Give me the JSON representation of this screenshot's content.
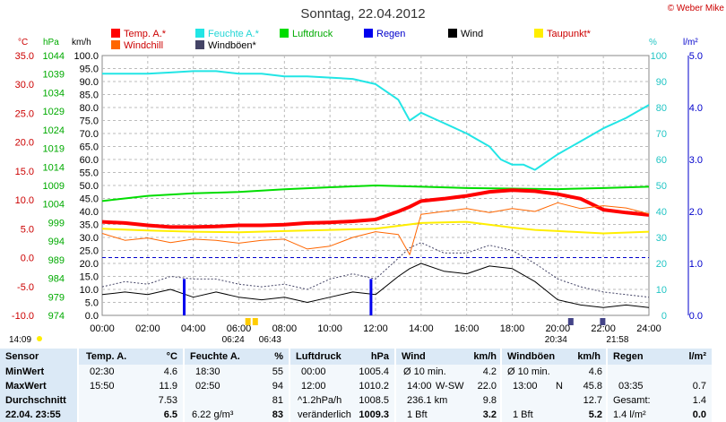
{
  "title": "Sonntag, 22.04.2012",
  "copyright": "© Weber Mike",
  "axis_units": {
    "temp": "°C",
    "pressure": "hPa",
    "wind": "km/h",
    "humidity": "%",
    "rain": "l/m²"
  },
  "legend": [
    {
      "label": "Temp. A.*",
      "color": "#ff0000",
      "text_color": "#cc0000"
    },
    {
      "label": "Feuchte A.*",
      "color": "#22e5e5",
      "text_color": "#22d5d5"
    },
    {
      "label": "Luftdruck",
      "color": "#00dd00",
      "text_color": "#00aa00"
    },
    {
      "label": "Regen",
      "color": "#0000ee",
      "text_color": "#0000cc"
    },
    {
      "label": "Wind",
      "color": "#000000",
      "text_color": "#000000"
    },
    {
      "label": "Taupunkt*",
      "color": "#ffee00",
      "text_color": "#cc0000"
    },
    {
      "label": "Windchill",
      "color": "#ff6600",
      "text_color": "#cc0000"
    },
    {
      "label": "Windböen*",
      "color": "#444466",
      "text_color": "#000000"
    }
  ],
  "chart_data": {
    "type": "line",
    "title": "Sonntag, 22.04.2012",
    "x_ticks": [
      "00:00",
      "02:00",
      "04:00",
      "06:00",
      "08:00",
      "10:00",
      "12:00",
      "14:00",
      "16:00",
      "18:00",
      "20:00",
      "22:00",
      "24:00"
    ],
    "x_hours": [
      0,
      2,
      4,
      6,
      8,
      10,
      12,
      14,
      16,
      18,
      20,
      22,
      24
    ],
    "temp_ticks": [
      "35.0",
      "30.0",
      "25.0",
      "20.0",
      "15.0",
      "10.0",
      "5.0",
      "0.0",
      "-5.0",
      "-10.0"
    ],
    "pressure_ticks": [
      "1044",
      "1039",
      "1034",
      "1029",
      "1024",
      "1019",
      "1014",
      "1009",
      "1004",
      "999",
      "994",
      "989",
      "984",
      "979",
      "974"
    ],
    "wind_ticks": [
      "100.0",
      "95.0",
      "90.0",
      "85.0",
      "80.0",
      "75.0",
      "70.0",
      "65.0",
      "60.0",
      "55.0",
      "50.0",
      "45.0",
      "40.0",
      "35.0",
      "30.0",
      "25.0",
      "20.0",
      "15.0",
      "10.0",
      "5.0",
      "0.0"
    ],
    "humidity_ticks": [
      "100",
      "90",
      "80",
      "70",
      "60",
      "50",
      "40",
      "30",
      "20",
      "10",
      "0"
    ],
    "rain_ticks": [
      "5.0",
      "4.0",
      "3.0",
      "2.0",
      "1.0",
      "0.0"
    ],
    "ylim_temp": [
      -10,
      35
    ],
    "ylim_wind": [
      0,
      100
    ],
    "ylim_humidity": [
      0,
      100
    ],
    "ylim_rain": [
      0,
      5
    ],
    "zero_line_temp": 0.0,
    "series": [
      {
        "name": "Feuchte A.*",
        "axis": "humidity",
        "color": "#22e5e5",
        "width": 2,
        "x": [
          0,
          1,
          2,
          3,
          4,
          5,
          6,
          7,
          8,
          9,
          10,
          11,
          12,
          13,
          13.5,
          14,
          14.5,
          15,
          16,
          17,
          17.5,
          18,
          18.5,
          19,
          20,
          21,
          22,
          23,
          24
        ],
        "y": [
          93,
          93,
          93,
          93.5,
          94,
          94,
          93,
          93,
          92,
          92,
          91.5,
          91,
          89,
          83,
          75,
          78,
          76,
          74,
          70,
          65,
          60,
          58,
          58,
          56,
          62,
          67,
          72,
          76,
          81
        ]
      },
      {
        "name": "Luftdruck",
        "axis": "humidity",
        "color": "#00dd00",
        "width": 2,
        "x": [
          0,
          2,
          4,
          6,
          8,
          10,
          12,
          14,
          16,
          18,
          20,
          22,
          24
        ],
        "y": [
          44,
          46,
          47,
          47.5,
          48.5,
          49.3,
          50,
          49.5,
          49,
          48.8,
          48.6,
          49,
          49.5
        ]
      },
      {
        "name": "Temp. A.*",
        "axis": "temp",
        "color": "#ff0000",
        "width": 4,
        "x": [
          0,
          1,
          2,
          3,
          4,
          5,
          6,
          7,
          8,
          9,
          10,
          11,
          12,
          13,
          13.5,
          14,
          15,
          16,
          17,
          18,
          19,
          20,
          21,
          22,
          23,
          24
        ],
        "y": [
          6.2,
          6.0,
          5.6,
          5.3,
          5.3,
          5.4,
          5.6,
          5.6,
          5.7,
          6.0,
          6.1,
          6.3,
          6.6,
          8.0,
          8.8,
          9.8,
          10.2,
          10.7,
          11.4,
          11.7,
          11.5,
          11.0,
          10.2,
          8.3,
          7.8,
          7.4
        ]
      },
      {
        "name": "Taupunkt*",
        "axis": "temp",
        "color": "#ffee00",
        "width": 2,
        "x": [
          0,
          2,
          4,
          6,
          8,
          10,
          12,
          14,
          16,
          18,
          19,
          20,
          22,
          24
        ],
        "y": [
          5.0,
          4.7,
          4.5,
          4.4,
          4.6,
          4.8,
          5.0,
          6.0,
          6.2,
          5.2,
          4.8,
          4.6,
          4.2,
          4.5
        ]
      },
      {
        "name": "Windchill",
        "axis": "temp",
        "color": "#ff6600",
        "width": 1,
        "x": [
          0,
          1,
          2,
          3,
          4,
          5,
          6,
          7,
          8,
          9,
          10,
          11,
          12,
          13,
          13.5,
          14,
          15,
          16,
          17,
          18,
          19,
          20,
          21,
          22,
          23,
          24
        ],
        "y": [
          4.2,
          3.0,
          3.4,
          2.6,
          3.2,
          3.0,
          2.5,
          3.0,
          3.2,
          1.5,
          2.0,
          3.5,
          4.5,
          4.0,
          0.5,
          7.5,
          8.0,
          8.5,
          7.8,
          8.5,
          8.0,
          9.5,
          8.5,
          9.0,
          8.6,
          7.6
        ]
      },
      {
        "name": "Windböen*",
        "axis": "wind",
        "color": "#444466",
        "width": 1,
        "dash": "2,2",
        "x": [
          0,
          1,
          2,
          3,
          4,
          5,
          6,
          7,
          8,
          9,
          10,
          11,
          12,
          13,
          13.5,
          14,
          15,
          16,
          17,
          18,
          19,
          20,
          21,
          22,
          23,
          24
        ],
        "y": [
          11,
          13,
          12,
          15,
          14,
          14,
          12,
          11,
          12,
          10,
          14,
          16,
          14,
          22,
          26,
          28,
          24,
          24,
          27,
          25,
          20,
          14,
          11,
          9,
          8,
          7
        ]
      },
      {
        "name": "Wind",
        "axis": "wind",
        "color": "#000000",
        "width": 1,
        "x": [
          0,
          1,
          2,
          3,
          4,
          5,
          6,
          7,
          8,
          9,
          10,
          11,
          12,
          13,
          13.5,
          14,
          15,
          16,
          17,
          18,
          19,
          20,
          21,
          22,
          23,
          24
        ],
        "y": [
          8,
          9,
          8,
          10,
          7,
          9,
          7,
          6,
          7,
          5,
          7,
          9,
          8,
          15,
          18,
          20,
          17,
          16,
          19,
          18,
          13,
          6,
          4,
          3,
          4,
          3
        ]
      }
    ],
    "rain_bars": [
      {
        "x": 3.6,
        "y": 0.7
      },
      {
        "x": 11.8,
        "y": 0.7
      }
    ],
    "sun_markers": [
      {
        "time": "06:24",
        "x": 6.4,
        "type": "sunrise"
      },
      {
        "time": "06:43",
        "x": 6.72,
        "type": "sunrise"
      },
      {
        "time": "20:34",
        "x": 20.57,
        "type": "sunset"
      },
      {
        "time": "21:58",
        "x": 21.97,
        "type": "sunset"
      }
    ],
    "moment_marker": {
      "time": "14:09",
      "x": 0
    }
  },
  "table": {
    "sections": [
      {
        "header": "Sensor",
        "rows": [
          "MinWert",
          "MaxWert",
          "Durchschnitt",
          "22.04.  23:55"
        ]
      },
      {
        "header": "Temp. A.",
        "unit": "°C",
        "rows": [
          [
            "02:30",
            "4.6"
          ],
          [
            "15:50",
            "11.9"
          ],
          [
            "",
            "7.53"
          ],
          [
            "",
            "6.5"
          ]
        ]
      },
      {
        "header": "Feuchte A.",
        "unit": "%",
        "rows": [
          [
            "18:30",
            "55"
          ],
          [
            "02:50",
            "94"
          ],
          [
            "",
            "81"
          ],
          [
            "6.22 g/m³",
            "83"
          ]
        ]
      },
      {
        "header": "Luftdruck",
        "unit": "hPa",
        "rows": [
          [
            "00:00",
            "1005.4"
          ],
          [
            "12:00",
            "1010.2"
          ],
          [
            "^1.2hPa/h",
            "1008.5"
          ],
          [
            "veränderlich",
            "1009.3"
          ]
        ]
      },
      {
        "header": "Wind",
        "unit": "km/h",
        "rows": [
          [
            "Ø 10 min.",
            "",
            "4.2"
          ],
          [
            "14:00",
            "W-SW",
            "22.0"
          ],
          [
            "236.1 km",
            "",
            "9.8"
          ],
          [
            "1 Bft",
            "",
            "3.2"
          ]
        ]
      },
      {
        "header": "Windböen",
        "unit": "km/h",
        "rows": [
          [
            "Ø 10 min.",
            "",
            "4.6"
          ],
          [
            "13:00",
            "N",
            "45.8"
          ],
          [
            "",
            "",
            "12.7"
          ],
          [
            "1 Bft",
            "",
            "5.2"
          ]
        ]
      },
      {
        "header": "Regen",
        "unit": "l/m²",
        "rows": [
          [
            "",
            "",
            ""
          ],
          [
            "03:35",
            "",
            "0.7"
          ],
          [
            "Gesamt:",
            "",
            "1.4"
          ],
          [
            "1.4 l/m²",
            "",
            "0.0"
          ]
        ]
      }
    ]
  }
}
